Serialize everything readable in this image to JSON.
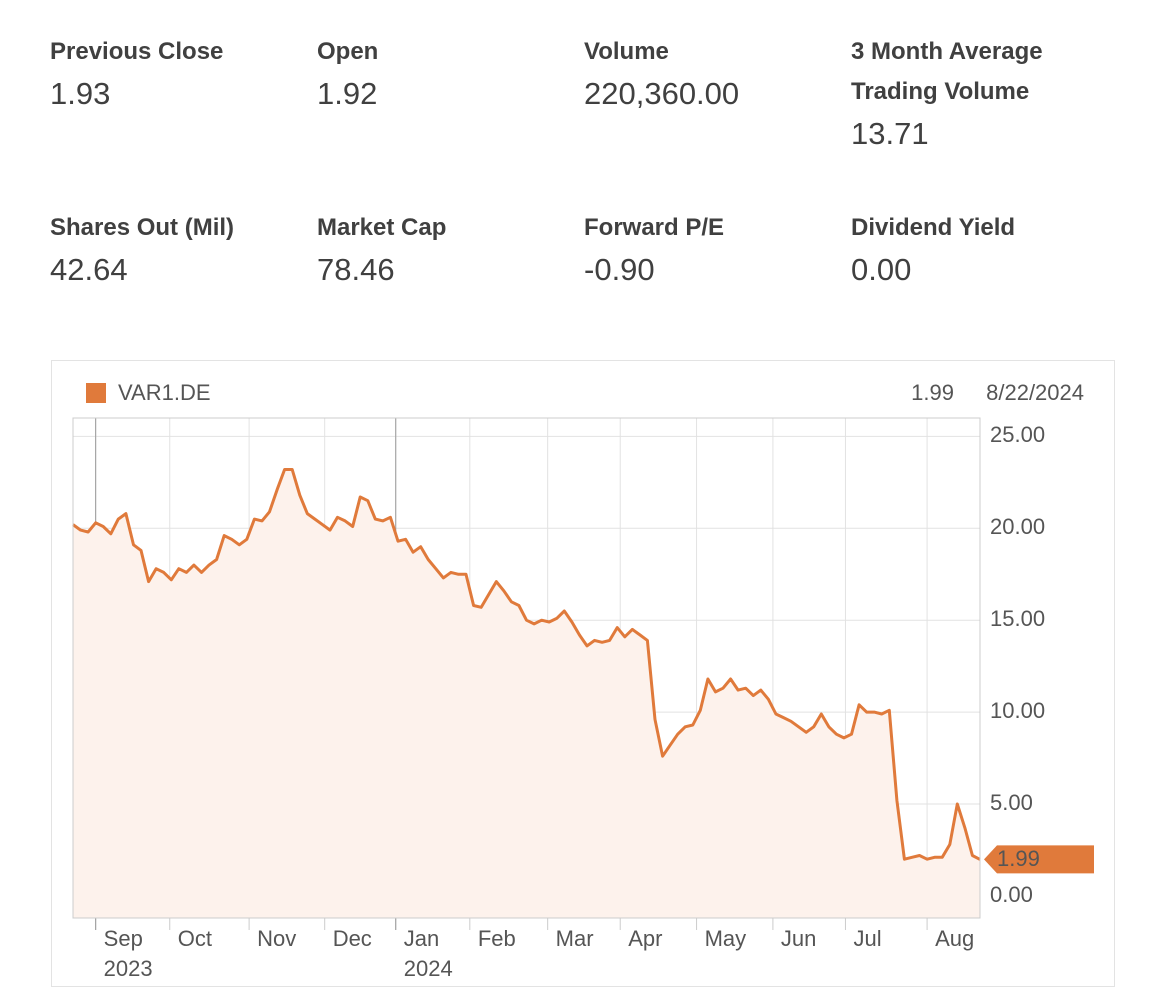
{
  "stats": [
    {
      "label": "Previous Close",
      "value": "1.93"
    },
    {
      "label": "Open",
      "value": "1.92"
    },
    {
      "label": "Volume",
      "value": "220,360.00"
    },
    {
      "label": "3 Month Average Trading Volume",
      "value": "13.71"
    },
    {
      "label": "Shares Out (Mil)",
      "value": "42.64"
    },
    {
      "label": "Market Cap",
      "value": "78.46"
    },
    {
      "label": "Forward P/E",
      "value": "-0.90"
    },
    {
      "label": "Dividend Yield",
      "value": "0.00"
    }
  ],
  "chart_data": {
    "type": "area",
    "series_name": "VAR1.DE",
    "color": "#e07a3b",
    "fill": "#fdf2ec",
    "last_date": "8/22/2024",
    "values": [
      20.2,
      19.9,
      19.8,
      20.3,
      20.1,
      19.7,
      20.5,
      20.8,
      19.1,
      18.8,
      17.1,
      17.8,
      17.6,
      17.2,
      17.8,
      17.6,
      18.0,
      17.6,
      18.0,
      18.3,
      19.6,
      19.4,
      19.1,
      19.4,
      20.5,
      20.4,
      20.9,
      22.1,
      23.2,
      23.2,
      21.8,
      20.8,
      20.5,
      20.2,
      19.9,
      20.6,
      20.4,
      20.1,
      21.7,
      21.5,
      20.5,
      20.4,
      20.6,
      19.3,
      19.4,
      18.7,
      19.0,
      18.3,
      17.8,
      17.3,
      17.6,
      17.5,
      17.5,
      15.8,
      15.7,
      16.4,
      17.1,
      16.6,
      16.0,
      15.8,
      15.0,
      14.8,
      15.0,
      14.9,
      15.1,
      15.5,
      14.9,
      14.2,
      13.6,
      13.9,
      13.8,
      13.9,
      14.6,
      14.1,
      14.5,
      14.2,
      13.9,
      9.6,
      7.6,
      8.2,
      8.8,
      9.2,
      9.3,
      10.1,
      11.8,
      11.1,
      11.3,
      11.8,
      11.2,
      11.3,
      10.9,
      11.2,
      10.7,
      9.9,
      9.7,
      9.5,
      9.2,
      8.9,
      9.2,
      9.9,
      9.2,
      8.8,
      8.6,
      8.8,
      10.4,
      10.0,
      10.0,
      9.9,
      10.1,
      5.2,
      2.0,
      2.1,
      2.2,
      2.0,
      2.1,
      2.1,
      2.8,
      5.0,
      3.7,
      2.2,
      1.99
    ],
    "xlim": [
      0,
      120
    ],
    "xticks": [
      {
        "value": 3.0,
        "label": "Sep"
      },
      {
        "value": 12.8,
        "label": "Oct"
      },
      {
        "value": 23.3,
        "label": "Nov"
      },
      {
        "value": 33.3,
        "label": "Dec"
      },
      {
        "value": 42.7,
        "label": "Jan"
      },
      {
        "value": 52.5,
        "label": "Feb"
      },
      {
        "value": 62.8,
        "label": "Mar"
      },
      {
        "value": 72.4,
        "label": "Apr"
      },
      {
        "value": 82.5,
        "label": "May"
      },
      {
        "value": 92.6,
        "label": "Jun"
      },
      {
        "value": 102.2,
        "label": "Jul"
      },
      {
        "value": 113.0,
        "label": "Aug"
      }
    ],
    "year_labels": [
      {
        "value": 3.0,
        "label": "2023"
      },
      {
        "value": 42.7,
        "label": "2024"
      }
    ],
    "ylim": [
      -1.2,
      26.0
    ],
    "yticks": [
      {
        "value": 0,
        "label": "0.00"
      },
      {
        "value": 5,
        "label": "5.00"
      },
      {
        "value": 10,
        "label": "10.00"
      },
      {
        "value": 15,
        "label": "15.00"
      },
      {
        "value": 20,
        "label": "20.00"
      },
      {
        "value": 25,
        "label": "25.00"
      }
    ],
    "grid": true
  }
}
